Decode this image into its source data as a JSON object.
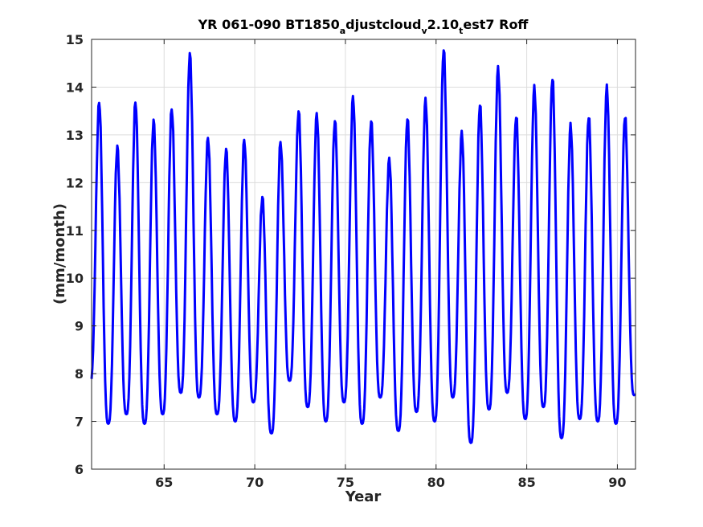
{
  "chart_data": {
    "type": "line",
    "title": {
      "part1": "YR 061-090 BT1850",
      "sub1": "a",
      "part2": "djustcloud",
      "sub2": "v",
      "part3": "2.10",
      "sub3": "t",
      "part4": "est7 Roff"
    },
    "xlabel": "Year",
    "ylabel": "(mm/month)",
    "xlim": [
      61,
      91
    ],
    "ylim": [
      6,
      15
    ],
    "xticks": [
      65,
      70,
      75,
      80,
      85,
      90
    ],
    "yticks": [
      6,
      7,
      8,
      9,
      10,
      11,
      12,
      13,
      14,
      15
    ],
    "grid": true,
    "series": [
      {
        "color": "#0000ff",
        "peaks": [
          13.7,
          12.75,
          13.7,
          13.3,
          13.55,
          14.7,
          12.95,
          12.7,
          12.9,
          11.7,
          12.85,
          13.5,
          13.45,
          13.3,
          13.8,
          13.3,
          12.5,
          13.35,
          13.75,
          14.8,
          13.05,
          13.65,
          14.4,
          13.4,
          14.0,
          14.2,
          13.2,
          13.4,
          14.0,
          13.4
        ],
        "troughs": [
          7.8,
          6.95,
          7.15,
          6.95,
          7.15,
          7.6,
          7.5,
          7.15,
          7.0,
          7.4,
          6.75,
          7.85,
          7.3,
          7.0,
          7.4,
          6.95,
          7.5,
          6.8,
          7.2,
          7.0,
          7.5,
          6.55,
          7.25,
          7.6,
          7.05,
          7.3,
          6.65,
          7.05,
          7.0,
          6.95,
          7.55
        ]
      }
    ]
  }
}
